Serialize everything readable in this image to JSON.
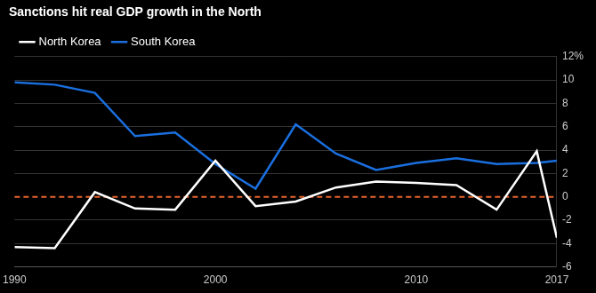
{
  "chart_data": {
    "type": "line",
    "title": "Sanctions hit real GDP growth in the North",
    "x": [
      1990,
      1992,
      1994,
      1996,
      1998,
      2000,
      2002,
      2004,
      2006,
      2008,
      2010,
      2012,
      2014,
      2016,
      2017
    ],
    "series": [
      {
        "name": "North Korea",
        "color": "#ffffff",
        "values": [
          -4.3,
          -4.4,
          0.4,
          -1.0,
          -1.1,
          3.1,
          -0.8,
          -0.4,
          0.8,
          1.3,
          1.2,
          1.0,
          -1.1,
          3.9,
          -3.5
        ]
      },
      {
        "name": "South Korea",
        "color": "#1a6fdf",
        "values": [
          9.8,
          9.6,
          8.9,
          5.2,
          5.5,
          2.8,
          0.7,
          6.2,
          3.7,
          2.3,
          2.9,
          3.3,
          2.8,
          2.9,
          3.1
        ]
      }
    ],
    "xlim": [
      1990,
      2017
    ],
    "xticks": [
      1990,
      2000,
      2010,
      2017
    ],
    "ylim": [
      -6,
      12
    ],
    "yticks": [
      -6,
      -4,
      -2,
      0,
      2,
      4,
      6,
      8,
      10,
      {
        "value": 12,
        "label": "12%"
      }
    ],
    "grid": true,
    "legend": "top-left"
  }
}
